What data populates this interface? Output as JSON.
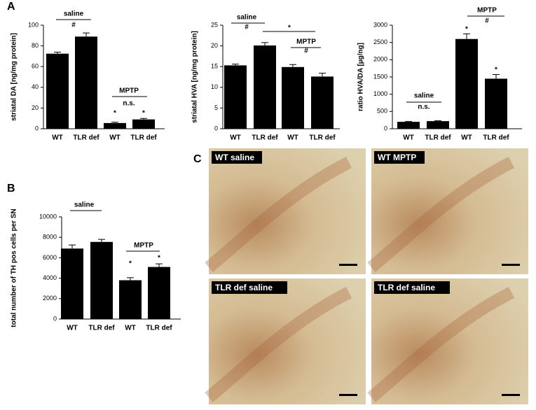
{
  "panel_labels": [
    "A",
    "B",
    "C"
  ],
  "chart_data": [
    {
      "type": "bar",
      "y_label": "striatal DA [ng/mg protein]",
      "categories": [
        "WT",
        "TLR def",
        "WT",
        "TLR def"
      ],
      "values": [
        72.5,
        89,
        5.5,
        9
      ],
      "errors": [
        1.5,
        3.5,
        0.8,
        1
      ],
      "color": "#000000",
      "ylim": [
        0,
        100
      ],
      "yticks": [
        0,
        20,
        40,
        60,
        80,
        100
      ],
      "annotations": [
        "saline",
        "#",
        "MPTP",
        "n.s.",
        "*",
        "*"
      ]
    },
    {
      "type": "bar",
      "y_label": "striatal HVA [ng/mg protein]",
      "categories": [
        "WT",
        "TLR def",
        "WT",
        "TLR def"
      ],
      "values": [
        15.3,
        20.1,
        14.9,
        12.6
      ],
      "errors": [
        0.3,
        0.7,
        0.6,
        0.8
      ],
      "color": "#000000",
      "ylim": [
        0,
        25
      ],
      "yticks": [
        0,
        5,
        10,
        15,
        20,
        25
      ],
      "annotations": [
        "saline",
        "#",
        "*",
        "MPTP",
        "#"
      ]
    },
    {
      "type": "bar",
      "y_label": "ratio HVA/DA [µg/ng]",
      "categories": [
        "WT",
        "TLR def",
        "WT",
        "TLR def"
      ],
      "values": [
        200,
        220,
        2600,
        1450
      ],
      "errors": [
        10,
        10,
        150,
        120
      ],
      "color": "#000000",
      "ylim": [
        0,
        3000
      ],
      "yticks": [
        0,
        500,
        1000,
        1500,
        2000,
        2500,
        3000
      ],
      "annotations": [
        "MPTP",
        "#",
        "saline",
        "n.s.",
        "*",
        "*"
      ]
    },
    {
      "type": "bar",
      "y_label": "total number of TH pos cells per SN",
      "categories": [
        "WT",
        "TLR def",
        "WT",
        "TLR def"
      ],
      "values": [
        6900,
        7550,
        3800,
        5100
      ],
      "errors": [
        350,
        250,
        250,
        300
      ],
      "color": "#000000",
      "ylim": [
        0,
        10000
      ],
      "yticks": [
        0,
        2000,
        4000,
        6000,
        8000,
        10000
      ],
      "annotations": [
        "saline",
        "MPTP",
        "*",
        "*"
      ]
    }
  ],
  "micrographs": [
    {
      "label": "WT saline"
    },
    {
      "label": "WT MPTP"
    },
    {
      "label": "TLR def saline"
    },
    {
      "label": "TLR def saline"
    }
  ]
}
